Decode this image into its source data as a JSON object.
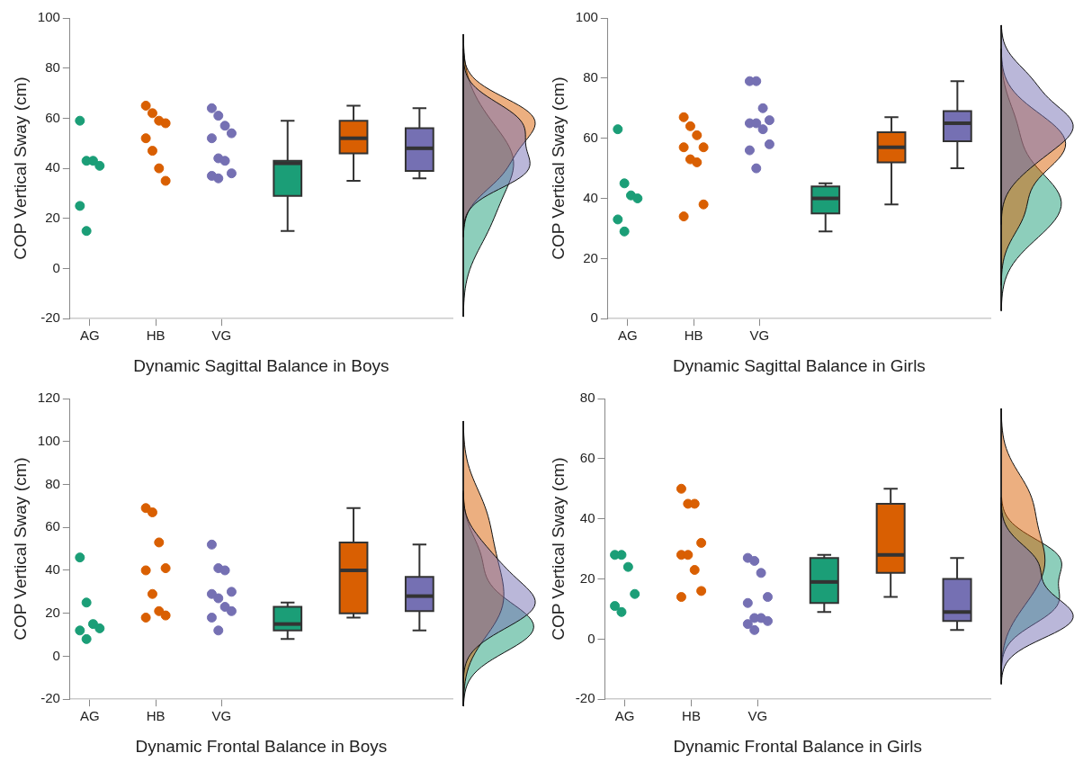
{
  "chart_data": [
    {
      "type": "box",
      "xlabel": "Dynamic Sagittal Balance in Boys",
      "ylabel": "COP Vertical Sway (cm)",
      "categories": [
        "AG",
        "HB",
        "VG",
        null,
        null,
        null
      ],
      "ylim": [
        -20,
        100
      ],
      "yticks": [
        -20,
        0,
        20,
        40,
        60,
        80,
        100
      ],
      "grid": false,
      "legend": false,
      "series": [
        {
          "type": "scatter",
          "color": "#1b9e77",
          "x": [
            "AG",
            "AG",
            "AG",
            "AG",
            "AG",
            "AG"
          ],
          "values": [
            59,
            43,
            43,
            41,
            25,
            15
          ]
        },
        {
          "type": "scatter",
          "color": "#d95f02",
          "x": [
            "HB",
            "HB",
            "HB",
            "HB",
            "HB",
            "HB",
            "HB",
            "HB"
          ],
          "values": [
            65,
            62,
            59,
            58,
            52,
            47,
            40,
            35
          ]
        },
        {
          "type": "scatter",
          "color": "#7570b3",
          "x": [
            "VG",
            "VG",
            "VG",
            "VG",
            "VG",
            "VG",
            "VG",
            "VG",
            "VG",
            "VG"
          ],
          "values": [
            64,
            61,
            57,
            54,
            52,
            44,
            43,
            38,
            37,
            36
          ]
        },
        {
          "colors": [
            null,
            null,
            null,
            "#1b9e77",
            "#d95f02",
            "#7570b3"
          ],
          "boxes": [
            null,
            null,
            null,
            {
              "low": 15,
              "q1": 29,
              "median": 42,
              "q3": 43,
              "high": 59
            },
            {
              "low": 35,
              "q1": 46,
              "median": 52,
              "q3": 59,
              "high": 65
            },
            {
              "low": 36,
              "q1": 39,
              "median": 48,
              "q3": 56,
              "high": 64
            }
          ]
        }
      ]
    },
    {
      "type": "box",
      "xlabel": "Dynamic Sagittal Balance in Girls",
      "ylabel": "COP Vertical Sway (cm)",
      "categories": [
        "AG",
        "HB",
        "VG",
        null,
        null,
        null
      ],
      "ylim": [
        0,
        100
      ],
      "yticks": [
        0,
        20,
        40,
        60,
        80,
        100
      ],
      "grid": false,
      "legend": false,
      "series": [
        {
          "type": "scatter",
          "color": "#1b9e77",
          "x": [
            "AG",
            "AG",
            "AG",
            "AG",
            "AG",
            "AG"
          ],
          "values": [
            63,
            45,
            41,
            40,
            33,
            29
          ]
        },
        {
          "type": "scatter",
          "color": "#d95f02",
          "x": [
            "HB",
            "HB",
            "HB",
            "HB",
            "HB",
            "HB",
            "HB",
            "HB",
            "HB"
          ],
          "values": [
            67,
            64,
            61,
            57,
            57,
            53,
            52,
            38,
            34
          ]
        },
        {
          "type": "scatter",
          "color": "#7570b3",
          "x": [
            "VG",
            "VG",
            "VG",
            "VG",
            "VG",
            "VG",
            "VG",
            "VG",
            "VG",
            "VG"
          ],
          "values": [
            79,
            79,
            70,
            66,
            65,
            65,
            63,
            58,
            56,
            50
          ]
        },
        {
          "colors": [
            null,
            null,
            null,
            "#1b9e77",
            "#d95f02",
            "#7570b3"
          ],
          "boxes": [
            null,
            null,
            null,
            {
              "low": 29,
              "q1": 35,
              "median": 40,
              "q3": 44,
              "high": 45
            },
            {
              "low": 38,
              "q1": 52,
              "median": 57,
              "q3": 62,
              "high": 67
            },
            {
              "low": 50,
              "q1": 59,
              "median": 65,
              "q3": 69,
              "high": 79
            }
          ]
        }
      ]
    },
    {
      "type": "box",
      "xlabel": "Dynamic Frontal Balance in Boys",
      "ylabel": "COP Vertical Sway (cm)",
      "categories": [
        "AG",
        "HB",
        "VG",
        null,
        null,
        null
      ],
      "ylim": [
        -20,
        120
      ],
      "yticks": [
        -20,
        0,
        20,
        40,
        60,
        80,
        100,
        120
      ],
      "grid": false,
      "legend": false,
      "series": [
        {
          "type": "scatter",
          "color": "#1b9e77",
          "x": [
            "AG",
            "AG",
            "AG",
            "AG",
            "AG",
            "AG"
          ],
          "values": [
            46,
            25,
            15,
            13,
            12,
            8
          ]
        },
        {
          "type": "scatter",
          "color": "#d95f02",
          "x": [
            "HB",
            "HB",
            "HB",
            "HB",
            "HB",
            "HB",
            "HB",
            "HB",
            "HB"
          ],
          "values": [
            69,
            67,
            53,
            41,
            40,
            29,
            21,
            19,
            18
          ]
        },
        {
          "type": "scatter",
          "color": "#7570b3",
          "x": [
            "VG",
            "VG",
            "VG",
            "VG",
            "VG",
            "VG",
            "VG",
            "VG",
            "VG",
            "VG"
          ],
          "values": [
            52,
            41,
            40,
            30,
            29,
            27,
            23,
            21,
            18,
            12
          ]
        },
        {
          "colors": [
            null,
            null,
            null,
            "#1b9e77",
            "#d95f02",
            "#7570b3"
          ],
          "boxes": [
            null,
            null,
            null,
            {
              "low": 8,
              "q1": 12,
              "median": 15,
              "q3": 23,
              "high": 25
            },
            {
              "low": 18,
              "q1": 20,
              "median": 40,
              "q3": 53,
              "high": 69
            },
            {
              "low": 12,
              "q1": 21,
              "median": 28,
              "q3": 37,
              "high": 52
            }
          ]
        }
      ]
    },
    {
      "type": "box",
      "xlabel": "Dynamic Frontal Balance in Girls",
      "ylabel": "COP Vertical Sway (cm)",
      "categories": [
        "AG",
        "HB",
        "VG",
        null,
        null,
        null
      ],
      "ylim": [
        -20,
        80
      ],
      "yticks": [
        -20,
        0,
        20,
        40,
        60,
        80
      ],
      "grid": false,
      "legend": false,
      "series": [
        {
          "type": "scatter",
          "color": "#1b9e77",
          "x": [
            "AG",
            "AG",
            "AG",
            "AG",
            "AG",
            "AG"
          ],
          "values": [
            28,
            28,
            24,
            15,
            11,
            9
          ]
        },
        {
          "type": "scatter",
          "color": "#d95f02",
          "x": [
            "HB",
            "HB",
            "HB",
            "HB",
            "HB",
            "HB",
            "HB",
            "HB",
            "HB"
          ],
          "values": [
            50,
            45,
            45,
            32,
            28,
            28,
            23,
            16,
            14
          ]
        },
        {
          "type": "scatter",
          "color": "#7570b3",
          "x": [
            "VG",
            "VG",
            "VG",
            "VG",
            "VG",
            "VG",
            "VG",
            "VG",
            "VG",
            "VG"
          ],
          "values": [
            27,
            26,
            22,
            14,
            12,
            7,
            7,
            6,
            5,
            3
          ]
        },
        {
          "colors": [
            null,
            null,
            null,
            "#1b9e77",
            "#d95f02",
            "#7570b3"
          ],
          "boxes": [
            null,
            null,
            null,
            {
              "low": 9,
              "q1": 12,
              "median": 19,
              "q3": 27,
              "high": 28
            },
            {
              "low": 14,
              "q1": 22,
              "median": 28,
              "q3": 45,
              "high": 50
            },
            {
              "low": 3,
              "q1": 6,
              "median": 9,
              "q3": 20,
              "high": 27
            }
          ]
        }
      ]
    }
  ]
}
